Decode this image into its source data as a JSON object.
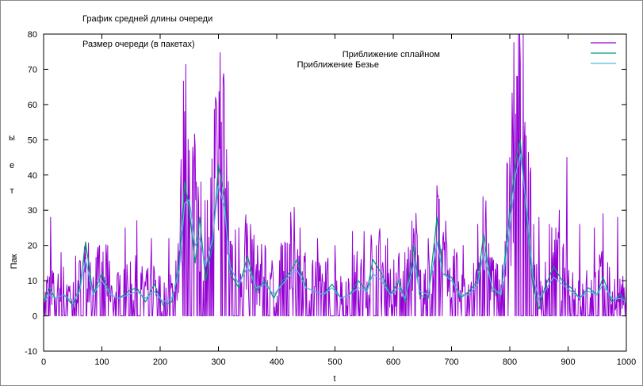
{
  "chart_data": {
    "type": "line",
    "title": "График средней длины очереди",
    "annotations": [
      "Размер очереди (в пакетах)"
    ],
    "xlabel": "t",
    "ylabel_chars": [
      "Пак",
      "т",
      "е",
      "ы"
    ],
    "xlim": [
      0,
      1000
    ],
    "ylim": [
      -10,
      80
    ],
    "xticks": [
      "0",
      "100",
      "200",
      "300",
      "400",
      "500",
      "600",
      "700",
      "800",
      "900",
      "1000"
    ],
    "yticks": [
      "-10",
      "0",
      "10",
      "20",
      "30",
      "40",
      "50",
      "60",
      "70",
      "80"
    ],
    "grid": false,
    "legend_position": "top-right",
    "colors": {
      "raw": "#9400d3",
      "spline": "#009e73",
      "bezier": "#56b4e9",
      "axes": "#000000",
      "background": "#ffffff"
    },
    "series": [
      {
        "name": "",
        "role": "raw",
        "note": "dense sampled queue length, shown as spiky signal",
        "peaks": [
          {
            "x": 12,
            "y": 28
          },
          {
            "x": 30,
            "y": 18
          },
          {
            "x": 55,
            "y": 17
          },
          {
            "x": 72,
            "y": 20
          },
          {
            "x": 95,
            "y": 19
          },
          {
            "x": 110,
            "y": 20
          },
          {
            "x": 140,
            "y": 25
          },
          {
            "x": 160,
            "y": 27
          },
          {
            "x": 185,
            "y": 22
          },
          {
            "x": 215,
            "y": 22
          },
          {
            "x": 242,
            "y": 58
          },
          {
            "x": 250,
            "y": 47
          },
          {
            "x": 262,
            "y": 38
          },
          {
            "x": 270,
            "y": 38
          },
          {
            "x": 298,
            "y": 45
          },
          {
            "x": 305,
            "y": 55
          },
          {
            "x": 335,
            "y": 25
          },
          {
            "x": 355,
            "y": 26
          },
          {
            "x": 380,
            "y": 20
          },
          {
            "x": 410,
            "y": 20
          },
          {
            "x": 425,
            "y": 25
          },
          {
            "x": 440,
            "y": 25
          },
          {
            "x": 470,
            "y": 22
          },
          {
            "x": 500,
            "y": 20
          },
          {
            "x": 530,
            "y": 24
          },
          {
            "x": 550,
            "y": 24
          },
          {
            "x": 575,
            "y": 20
          },
          {
            "x": 590,
            "y": 22
          },
          {
            "x": 620,
            "y": 18
          },
          {
            "x": 636,
            "y": 23
          },
          {
            "x": 660,
            "y": 22
          },
          {
            "x": 675,
            "y": 37
          },
          {
            "x": 685,
            "y": 22
          },
          {
            "x": 705,
            "y": 19
          },
          {
            "x": 720,
            "y": 20
          },
          {
            "x": 745,
            "y": 26
          },
          {
            "x": 760,
            "y": 20
          },
          {
            "x": 800,
            "y": 45
          },
          {
            "x": 812,
            "y": 68
          },
          {
            "x": 818,
            "y": 72
          },
          {
            "x": 826,
            "y": 55
          },
          {
            "x": 850,
            "y": 28
          },
          {
            "x": 868,
            "y": 26
          },
          {
            "x": 885,
            "y": 30
          },
          {
            "x": 898,
            "y": 45
          },
          {
            "x": 920,
            "y": 26
          },
          {
            "x": 945,
            "y": 25
          },
          {
            "x": 960,
            "y": 29
          },
          {
            "x": 985,
            "y": 28
          }
        ]
      },
      {
        "name": "Приближение сплайном",
        "role": "spline",
        "points": [
          [
            0,
            4
          ],
          [
            10,
            8
          ],
          [
            20,
            5
          ],
          [
            35,
            6
          ],
          [
            50,
            3
          ],
          [
            62,
            8
          ],
          [
            72,
            21
          ],
          [
            85,
            6
          ],
          [
            100,
            12
          ],
          [
            115,
            6
          ],
          [
            130,
            5
          ],
          [
            145,
            7
          ],
          [
            160,
            8
          ],
          [
            175,
            4
          ],
          [
            190,
            9
          ],
          [
            205,
            3
          ],
          [
            220,
            4
          ],
          [
            233,
            15
          ],
          [
            242,
            38
          ],
          [
            250,
            30
          ],
          [
            260,
            15
          ],
          [
            268,
            28
          ],
          [
            278,
            10
          ],
          [
            290,
            20
          ],
          [
            300,
            43
          ],
          [
            310,
            34
          ],
          [
            320,
            12
          ],
          [
            335,
            8
          ],
          [
            350,
            17
          ],
          [
            365,
            7
          ],
          [
            380,
            10
          ],
          [
            395,
            5
          ],
          [
            410,
            10
          ],
          [
            425,
            13
          ],
          [
            435,
            16
          ],
          [
            450,
            8
          ],
          [
            465,
            7
          ],
          [
            480,
            6
          ],
          [
            495,
            9
          ],
          [
            510,
            5
          ],
          [
            525,
            6
          ],
          [
            540,
            10
          ],
          [
            555,
            7
          ],
          [
            565,
            16
          ],
          [
            580,
            12
          ],
          [
            595,
            6
          ],
          [
            610,
            10
          ],
          [
            620,
            4
          ],
          [
            636,
            20
          ],
          [
            645,
            6
          ],
          [
            660,
            5
          ],
          [
            675,
            28
          ],
          [
            685,
            12
          ],
          [
            700,
            11
          ],
          [
            715,
            5
          ],
          [
            730,
            7
          ],
          [
            745,
            10
          ],
          [
            755,
            23
          ],
          [
            770,
            7
          ],
          [
            785,
            6
          ],
          [
            800,
            30
          ],
          [
            810,
            44
          ],
          [
            818,
            50
          ],
          [
            828,
            30
          ],
          [
            840,
            8
          ],
          [
            850,
            2
          ],
          [
            860,
            8
          ],
          [
            875,
            14
          ],
          [
            890,
            10
          ],
          [
            905,
            8
          ],
          [
            920,
            5
          ],
          [
            935,
            8
          ],
          [
            950,
            6
          ],
          [
            960,
            11
          ],
          [
            975,
            4
          ],
          [
            990,
            6
          ],
          [
            1000,
            4
          ]
        ]
      },
      {
        "name": "Приближение Безье",
        "role": "bezier",
        "points": [
          [
            0,
            4
          ],
          [
            10,
            6
          ],
          [
            20,
            5
          ],
          [
            35,
            6
          ],
          [
            50,
            4
          ],
          [
            62,
            7
          ],
          [
            72,
            16
          ],
          [
            85,
            6
          ],
          [
            100,
            10
          ],
          [
            115,
            6
          ],
          [
            130,
            5
          ],
          [
            145,
            6
          ],
          [
            160,
            7
          ],
          [
            175,
            5
          ],
          [
            190,
            7
          ],
          [
            205,
            4
          ],
          [
            220,
            5
          ],
          [
            233,
            13
          ],
          [
            242,
            32
          ],
          [
            250,
            33
          ],
          [
            260,
            20
          ],
          [
            268,
            22
          ],
          [
            278,
            14
          ],
          [
            290,
            22
          ],
          [
            300,
            37
          ],
          [
            310,
            31
          ],
          [
            320,
            14
          ],
          [
            335,
            9
          ],
          [
            350,
            14
          ],
          [
            365,
            8
          ],
          [
            380,
            9
          ],
          [
            395,
            6
          ],
          [
            410,
            9
          ],
          [
            425,
            12
          ],
          [
            435,
            13
          ],
          [
            450,
            8
          ],
          [
            465,
            7
          ],
          [
            480,
            6
          ],
          [
            495,
            8
          ],
          [
            510,
            5
          ],
          [
            525,
            6
          ],
          [
            540,
            8
          ],
          [
            555,
            7
          ],
          [
            565,
            12
          ],
          [
            580,
            10
          ],
          [
            595,
            6
          ],
          [
            610,
            8
          ],
          [
            620,
            5
          ],
          [
            636,
            15
          ],
          [
            645,
            7
          ],
          [
            660,
            6
          ],
          [
            675,
            21
          ],
          [
            685,
            12
          ],
          [
            700,
            10
          ],
          [
            715,
            6
          ],
          [
            730,
            6
          ],
          [
            745,
            9
          ],
          [
            755,
            18
          ],
          [
            770,
            8
          ],
          [
            785,
            6
          ],
          [
            800,
            25
          ],
          [
            810,
            40
          ],
          [
            818,
            46
          ],
          [
            828,
            32
          ],
          [
            840,
            11
          ],
          [
            850,
            5
          ],
          [
            860,
            7
          ],
          [
            875,
            11
          ],
          [
            890,
            9
          ],
          [
            905,
            7
          ],
          [
            920,
            5
          ],
          [
            935,
            7
          ],
          [
            950,
            6
          ],
          [
            960,
            9
          ],
          [
            975,
            5
          ],
          [
            990,
            5
          ],
          [
            1000,
            4
          ]
        ]
      }
    ]
  }
}
